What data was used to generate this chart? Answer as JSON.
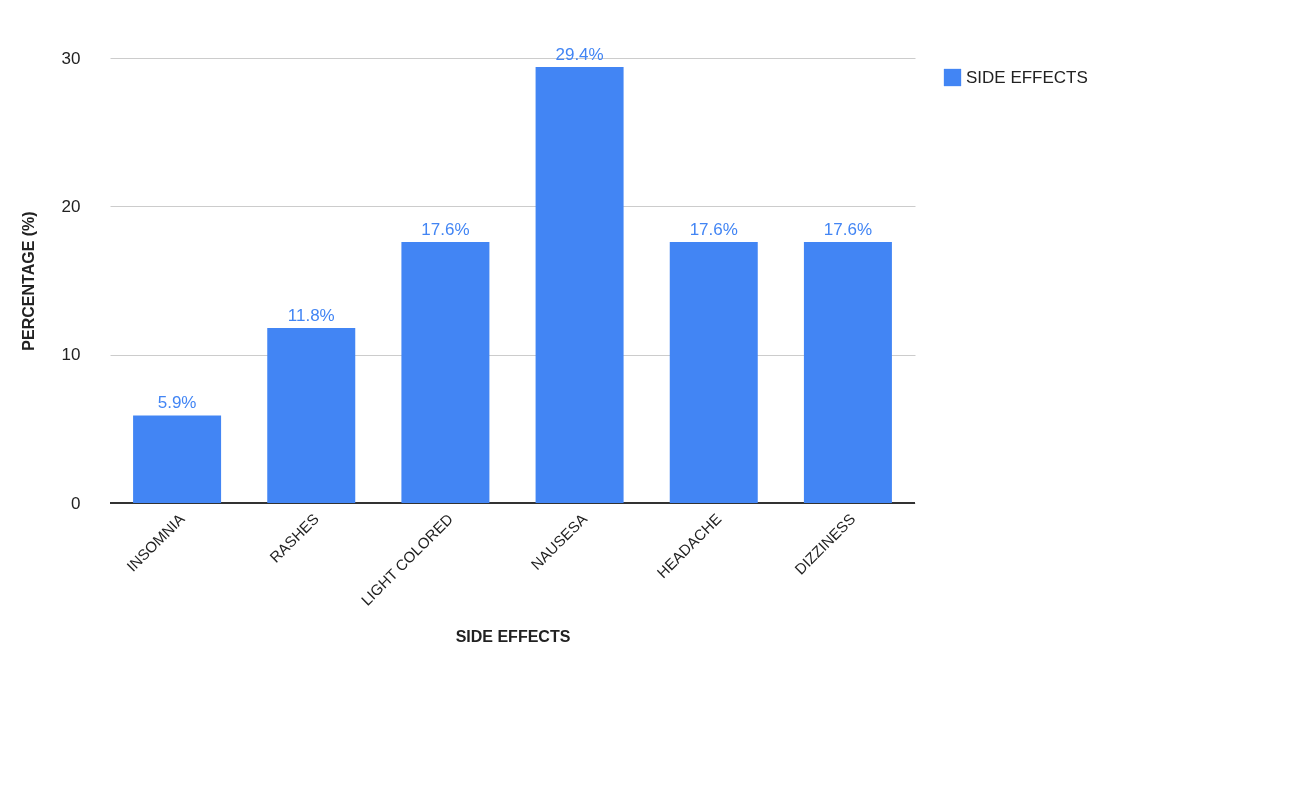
{
  "chart_data": {
    "type": "bar",
    "xlabel": "SIDE EFFECTS",
    "ylabel": "PERCENTAGE (%)",
    "categories": [
      "INSOMNIA",
      "RASHES",
      "LIGHT COLORED",
      "NAUSESA",
      "HEADACHE",
      "DIZZINESS"
    ],
    "series": [
      {
        "name": "SIDE EFFECTS",
        "color": "#4285f4",
        "values": [
          5.9,
          11.8,
          17.6,
          29.4,
          17.6,
          17.6
        ]
      }
    ],
    "value_labels": [
      "5.9%",
      "11.8%",
      "17.6%",
      "29.4%",
      "17.6%",
      "17.6%"
    ],
    "ylim": [
      0,
      30
    ],
    "yticks": [
      0,
      10,
      20,
      30
    ],
    "grid": "y",
    "legend": "top right"
  }
}
